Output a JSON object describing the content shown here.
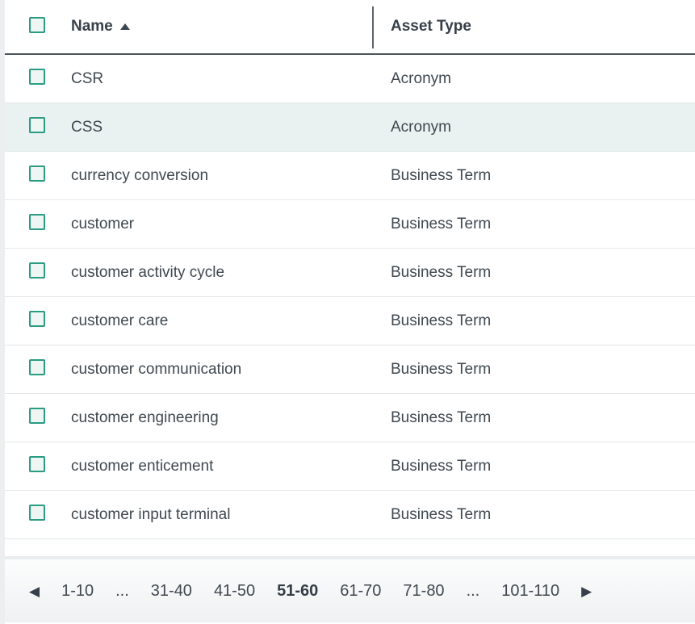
{
  "table": {
    "columns": {
      "name": {
        "label": "Name",
        "sort": "ascending"
      },
      "asset_type": {
        "label": "Asset Type"
      }
    },
    "rows": [
      {
        "name": "CSR",
        "asset_type": "Acronym"
      },
      {
        "name": "CSS",
        "asset_type": "Acronym"
      },
      {
        "name": "currency conversion",
        "asset_type": "Business Term"
      },
      {
        "name": "customer",
        "asset_type": "Business Term"
      },
      {
        "name": "customer activity cycle",
        "asset_type": "Business Term"
      },
      {
        "name": "customer care",
        "asset_type": "Business Term"
      },
      {
        "name": "customer communication",
        "asset_type": "Business Term"
      },
      {
        "name": "customer engineering",
        "asset_type": "Business Term"
      },
      {
        "name": "customer enticement",
        "asset_type": "Business Term"
      },
      {
        "name": "customer input terminal",
        "asset_type": "Business Term"
      }
    ],
    "highlighted_row": "CSS"
  },
  "pagination": {
    "prev_icon": "◀",
    "next_icon": "▶",
    "current_page": "51-60",
    "items": [
      {
        "label": "1-10"
      },
      {
        "label": "..."
      },
      {
        "label": "31-40"
      },
      {
        "label": "41-50"
      },
      {
        "label": "51-60"
      },
      {
        "label": "61-70"
      },
      {
        "label": "71-80"
      },
      {
        "label": "..."
      },
      {
        "label": "101-110"
      }
    ]
  },
  "colors": {
    "accent_teal": "#2b9c83",
    "row_highlight": "#e9f2f0",
    "header_border": "#4a545c",
    "row_border": "#e4e8e8",
    "text": "#3f4850"
  }
}
